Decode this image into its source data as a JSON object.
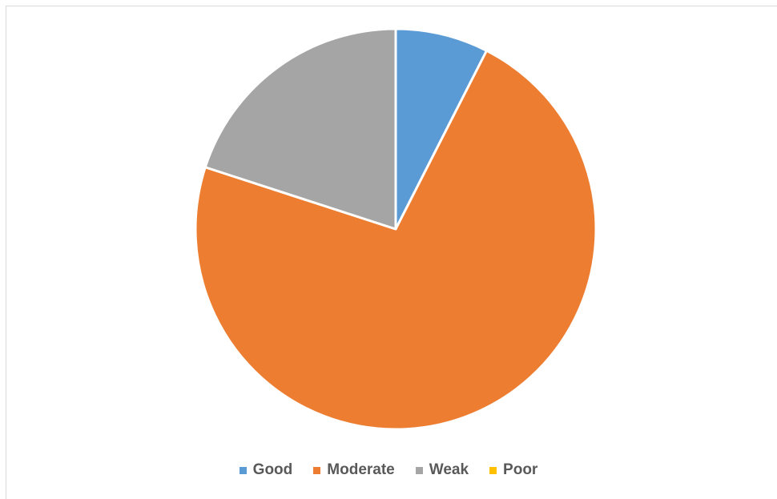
{
  "chart_data": {
    "type": "pie",
    "categories": [
      "Good",
      "Moderate",
      "Weak",
      "Poor"
    ],
    "values": [
      7.5,
      72.5,
      20.0,
      0.0
    ],
    "colors": [
      "#5b9bd5",
      "#ed7d31",
      "#a5a5a5",
      "#ffc000"
    ],
    "legend_position": "bottom",
    "start_angle_deg": 0,
    "direction": "clockwise"
  }
}
